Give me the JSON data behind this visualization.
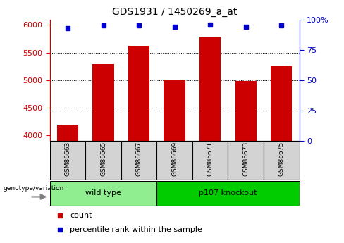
{
  "title": "GDS1931 / 1450269_a_at",
  "samples": [
    "GSM86663",
    "GSM86665",
    "GSM86667",
    "GSM86669",
    "GSM86671",
    "GSM86673",
    "GSM86675"
  ],
  "counts": [
    4200,
    5290,
    5620,
    5010,
    5790,
    4980,
    5250
  ],
  "percentiles": [
    93,
    95,
    95,
    94,
    96,
    94,
    95
  ],
  "groups": [
    {
      "label": "wild type",
      "samples": [
        0,
        1,
        2
      ],
      "color": "#90EE90"
    },
    {
      "label": "p107 knockout",
      "samples": [
        3,
        4,
        5,
        6
      ],
      "color": "#00CC00"
    }
  ],
  "bar_color": "#CC0000",
  "marker_color": "#0000CC",
  "ylim_left": [
    3900,
    6100
  ],
  "ylim_right": [
    0,
    100
  ],
  "yticks_left": [
    4000,
    4500,
    5000,
    5500,
    6000
  ],
  "yticks_right": [
    0,
    25,
    50,
    75,
    100
  ],
  "plot_bg": "#FFFFFF",
  "left_tick_color": "#CC0000",
  "right_tick_color": "#0000CC",
  "sample_box_color": "#D3D3D3",
  "genotype_label": "genotype/variation"
}
